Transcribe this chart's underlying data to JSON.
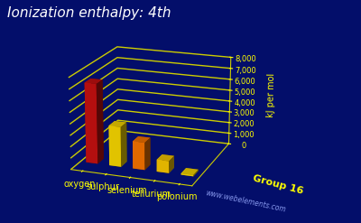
{
  "title": "Ionization enthalpy: 4th",
  "ylabel": "kJ per mol",
  "group_label": "Group 16",
  "website": "www.webelements.com",
  "bg_color": "#030e6a",
  "elements": [
    "oxygen",
    "sulphur",
    "selenium",
    "tellurium",
    "polonium"
  ],
  "values": [
    7070,
    3540,
    2420,
    1060,
    120
  ],
  "bar_colors": [
    "#cc1111",
    "#ffdd00",
    "#ff7700",
    "#ffcc00",
    "#ffdd00"
  ],
  "ylim_min": 0,
  "ylim_max": 8000,
  "yticks": [
    0,
    1000,
    2000,
    3000,
    4000,
    5000,
    6000,
    7000,
    8000
  ],
  "grid_color": "#cccc00",
  "label_color": "#ffff00",
  "title_color": "#ffffff",
  "title_fontsize": 11,
  "tick_fontsize": 6,
  "elem_fontsize": 7,
  "group_fontsize": 8,
  "web_fontsize": 5.5,
  "elev": 18,
  "azim": -70,
  "bar_width": 0.5,
  "bar_depth": 0.5
}
